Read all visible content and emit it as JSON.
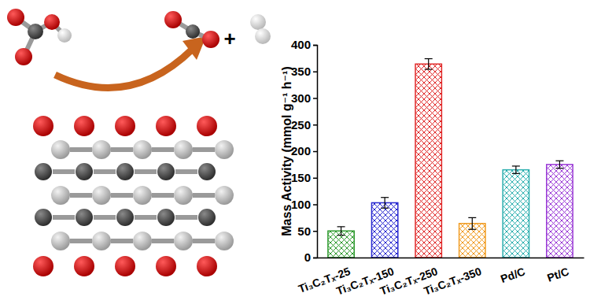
{
  "chart_data": {
    "type": "bar",
    "y_label": "Mass Activity (mmol g⁻¹ h⁻¹)",
    "categories": [
      "Ti₃C₂Tₓ-25",
      "Ti₃C₂Tₓ-150",
      "Ti₃C₂Tₓ-250",
      "Ti₃C₂Tₓ-350",
      "Pd/C",
      "Pt/C"
    ],
    "values": [
      50,
      103,
      364,
      64,
      165,
      175
    ],
    "errors": [
      8,
      10,
      10,
      11,
      7,
      7
    ],
    "colors": [
      "#2e9a2e",
      "#2a2ad0",
      "#e02828",
      "#f09a1e",
      "#2aaeae",
      "#9a3ad6"
    ],
    "ylim": [
      0,
      400
    ],
    "yticks": [
      0,
      50,
      100,
      150,
      200,
      250,
      300,
      350,
      400
    ],
    "grid": false,
    "annotations": [
      "+"
    ]
  }
}
